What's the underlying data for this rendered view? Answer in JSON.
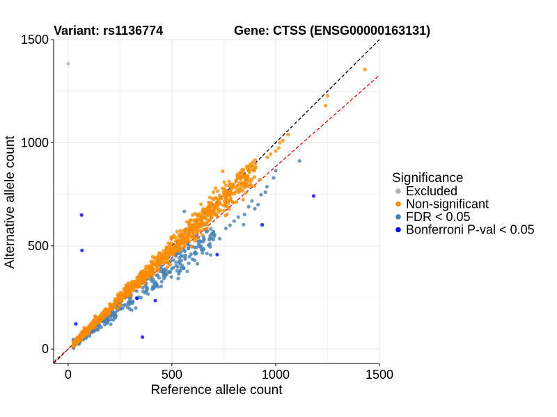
{
  "chart_data": {
    "type": "scatter",
    "title_left": "Variant: rs1136774",
    "title_right": "Gene: CTSS (ENSG00000163131)",
    "xlabel": "Reference allele count",
    "ylabel": "Alternative allele count",
    "xlim": [
      -70,
      1500
    ],
    "ylim": [
      -70,
      1500
    ],
    "x_ticks": [
      0,
      500,
      1000,
      1500
    ],
    "y_ticks": [
      0,
      500,
      1000,
      1500
    ],
    "grid": true,
    "legend": {
      "title": "Significance",
      "placement": "right",
      "items": [
        {
          "label": "Excluded",
          "color": "#b3b3b3"
        },
        {
          "label": "Non-significant",
          "color": "#ff8c00"
        },
        {
          "label": "FDR < 0.05",
          "color": "#4682b4"
        },
        {
          "label": "Bonferroni P-val < 0.05",
          "color": "#0000ff"
        }
      ]
    },
    "reference_lines": [
      {
        "name": "y = x",
        "color": "#000000",
        "slope": 1.0,
        "intercept": 0
      },
      {
        "name": "fit",
        "color": "#ff0000",
        "slope": 0.885,
        "intercept": 0
      }
    ],
    "series": [
      {
        "name": "Excluded",
        "color": "#b3b3b3",
        "points": [
          [
            0,
            1383
          ]
        ]
      },
      {
        "name": "Bonferroni P-val < 0.05",
        "color": "#0000ff",
        "points": [
          [
            65,
            650
          ],
          [
            67,
            478
          ],
          [
            37,
            122
          ],
          [
            358,
            58
          ],
          [
            332,
            245
          ],
          [
            420,
            235
          ],
          [
            1183,
            742
          ],
          [
            718,
            458
          ],
          [
            935,
            602
          ]
        ]
      },
      {
        "name": "FDR < 0.05",
        "color": "#4682b4",
        "points": [
          [
            560,
            667
          ],
          [
            730,
            535
          ],
          [
            612,
            470
          ],
          [
            845,
            603
          ],
          [
            850,
            652
          ],
          [
            915,
            700
          ],
          [
            930,
            748
          ],
          [
            958,
            787
          ],
          [
            1115,
            912
          ],
          [
            1000,
            865
          ],
          [
            885,
            718
          ],
          [
            800,
            620
          ],
          [
            700,
            555
          ],
          [
            650,
            520
          ],
          [
            900,
            680
          ],
          [
            990,
            830
          ],
          [
            760,
            585
          ],
          [
            870,
            690
          ],
          [
            950,
            760
          ],
          [
            820,
            640
          ],
          [
            780,
            600
          ],
          [
            680,
            530
          ],
          [
            640,
            500
          ]
        ]
      },
      {
        "name": "Non-significant",
        "color": "#ff8c00",
        "points": [
          [
            1430,
            1355
          ],
          [
            1250,
            1228
          ],
          [
            1035,
            1010
          ],
          [
            1015,
            975
          ],
          [
            975,
            945
          ],
          [
            1000,
            960
          ],
          [
            745,
            862
          ],
          [
            925,
            822
          ],
          [
            855,
            842
          ],
          [
            905,
            880
          ],
          [
            775,
            812
          ],
          [
            760,
            795
          ],
          [
            710,
            780
          ],
          [
            1020,
            1000
          ],
          [
            960,
            930
          ],
          [
            1060,
            1040
          ],
          [
            1240,
            1180
          ],
          [
            700,
            760
          ],
          [
            640,
            702
          ],
          [
            600,
            650
          ]
        ]
      }
    ],
    "bulk": {
      "x_range": [
        25,
        1000
      ],
      "stats": [
        {
          "name": "FDR < 0.05",
          "slope": 0.8,
          "spread": 40
        },
        {
          "name": "Non-significant",
          "slope": 0.97,
          "spread": 30
        }
      ]
    }
  }
}
